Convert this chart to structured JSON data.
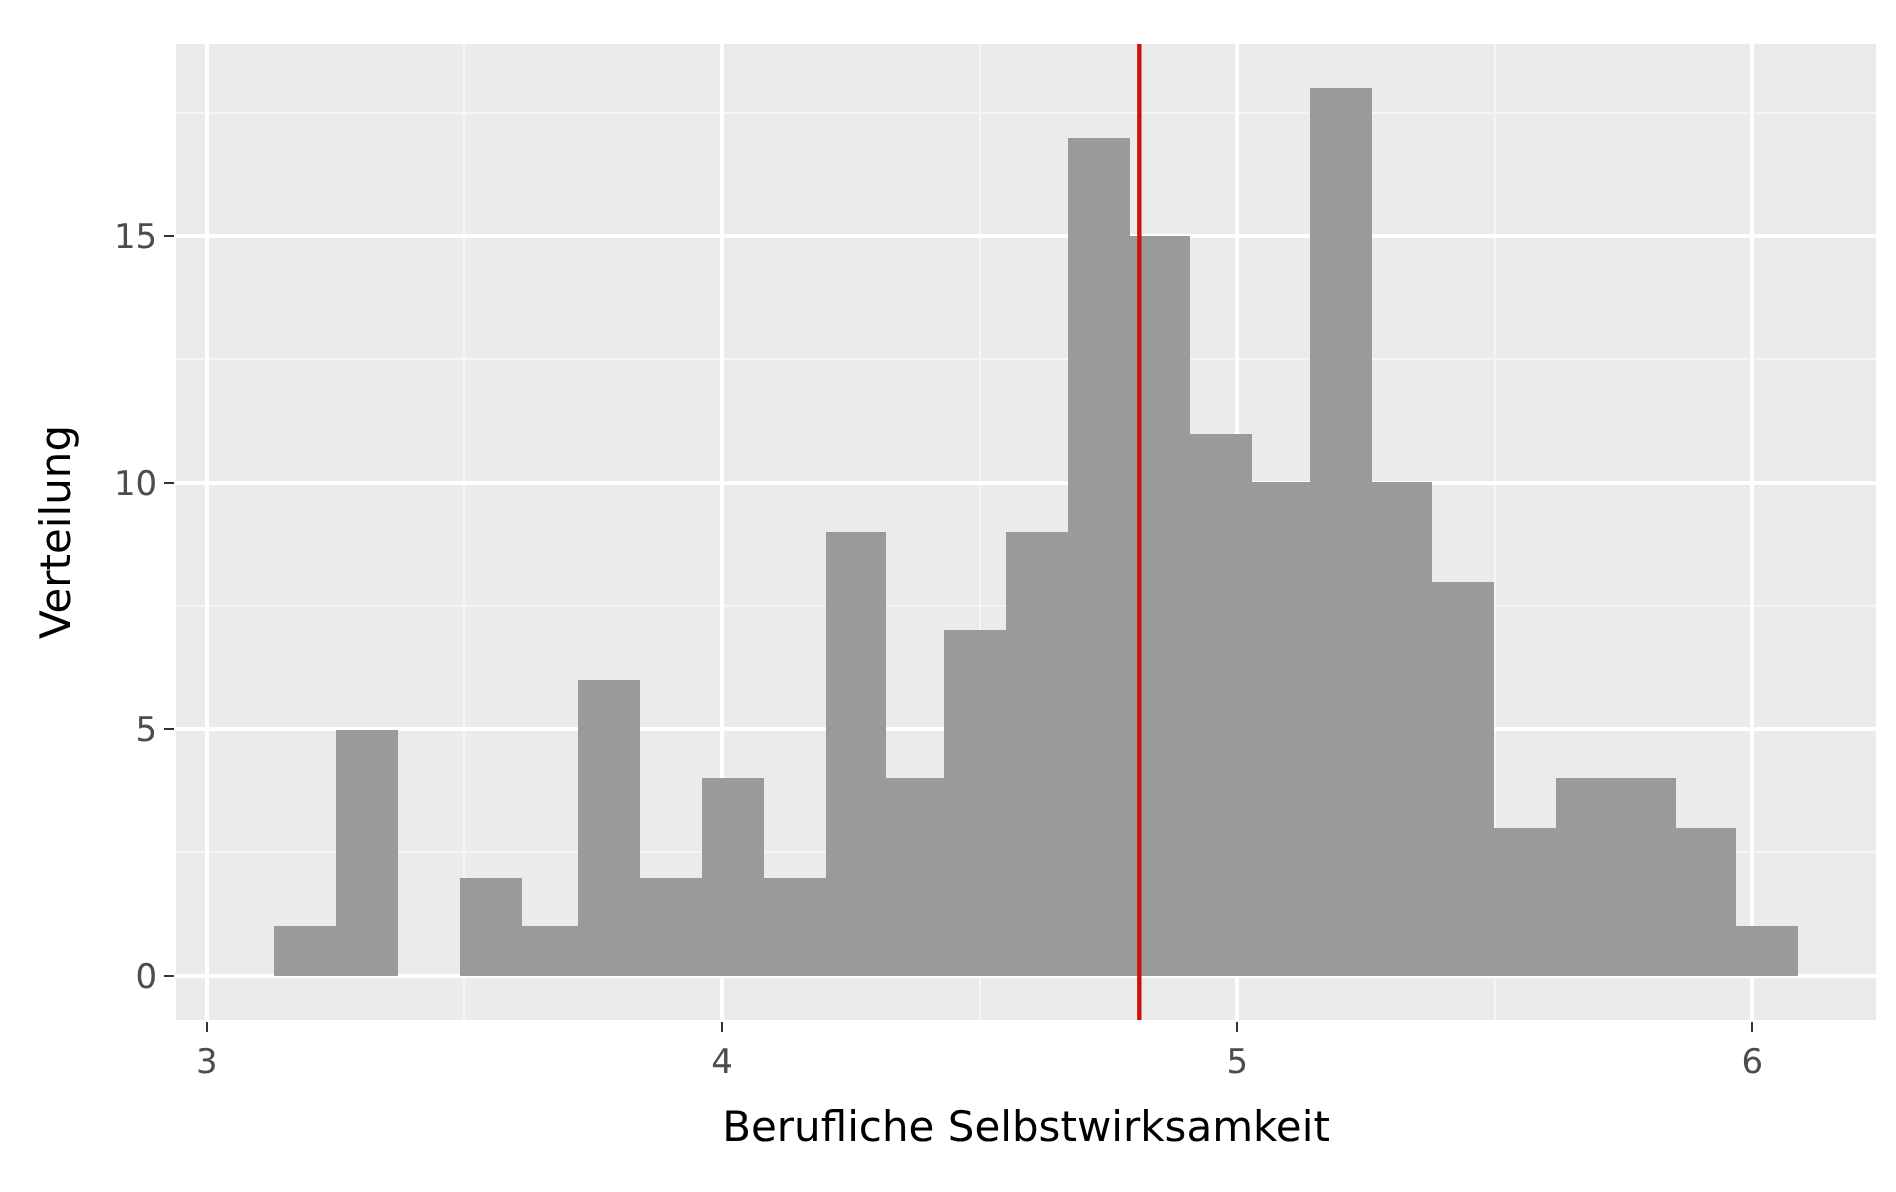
{
  "chart_data": {
    "type": "histogram",
    "xlabel": "Berufliche Selbstwirksamkeit",
    "ylabel": "Verteilung",
    "bins": [
      3.13,
      3.25,
      3.37,
      3.49,
      3.61,
      3.72,
      3.84,
      3.96,
      4.08,
      4.2,
      4.32,
      4.43,
      4.55,
      4.67,
      4.79,
      4.91,
      5.03,
      5.14,
      5.26,
      5.38,
      5.5,
      5.62,
      5.74,
      5.85,
      5.97,
      6.09
    ],
    "values": [
      1,
      5,
      0,
      2,
      1,
      6,
      2,
      4,
      2,
      9,
      4,
      7,
      9,
      17,
      15,
      11,
      10,
      18,
      10,
      8,
      3,
      4,
      4,
      3,
      1
    ],
    "color": "#9a9a9a",
    "xlim": [
      2.94,
      6.24
    ],
    "xticks": [
      3,
      4,
      5,
      6
    ],
    "ylim": [
      -0.9,
      18.9
    ],
    "yticks": [
      0,
      5,
      10,
      15
    ],
    "ref_lines": [
      {
        "axis": "x",
        "value": 4.81,
        "color": "#cc1111"
      }
    ],
    "grid": true
  }
}
